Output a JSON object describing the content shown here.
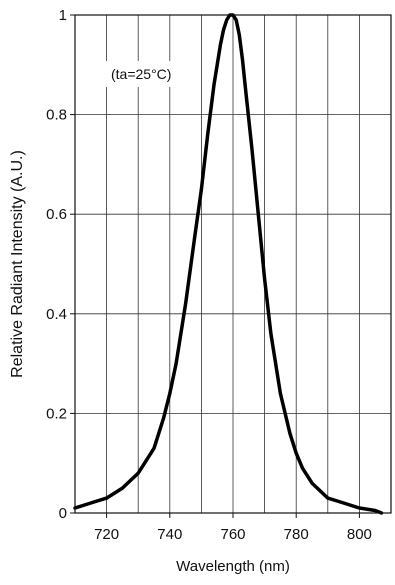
{
  "chart_data": {
    "type": "line",
    "title": "",
    "xlabel": "Wavelength (nm)",
    "ylabel": "Relative Radiant Intensity (A.U.)",
    "annotation": "(ta=25°C)",
    "xlim": [
      710,
      810
    ],
    "ylim": [
      0,
      1
    ],
    "xticks": [
      720,
      740,
      760,
      780,
      800
    ],
    "yticks": [
      0,
      0.2,
      0.4,
      0.6,
      0.8,
      1
    ],
    "ytick_labels": [
      "0",
      "0.2",
      "0.4",
      "0.6",
      "0.8",
      "1"
    ],
    "grid": true,
    "legend": "none",
    "series": [
      {
        "x": [
          710,
          715,
          720,
          725,
          730,
          735,
          738,
          740,
          742,
          745,
          748,
          750,
          752,
          754,
          756,
          757,
          758,
          759,
          760,
          761,
          762,
          763,
          764,
          766,
          768,
          770,
          772,
          775,
          778,
          780,
          782,
          785,
          790,
          795,
          800,
          805,
          807
        ],
        "y": [
          0.01,
          0.02,
          0.03,
          0.05,
          0.08,
          0.13,
          0.19,
          0.24,
          0.3,
          0.42,
          0.56,
          0.65,
          0.76,
          0.86,
          0.94,
          0.97,
          0.99,
          1.0,
          1.0,
          0.99,
          0.96,
          0.91,
          0.85,
          0.73,
          0.6,
          0.47,
          0.36,
          0.24,
          0.16,
          0.12,
          0.09,
          0.06,
          0.03,
          0.02,
          0.01,
          0.005,
          0.0
        ],
        "color": "#000000"
      }
    ]
  }
}
